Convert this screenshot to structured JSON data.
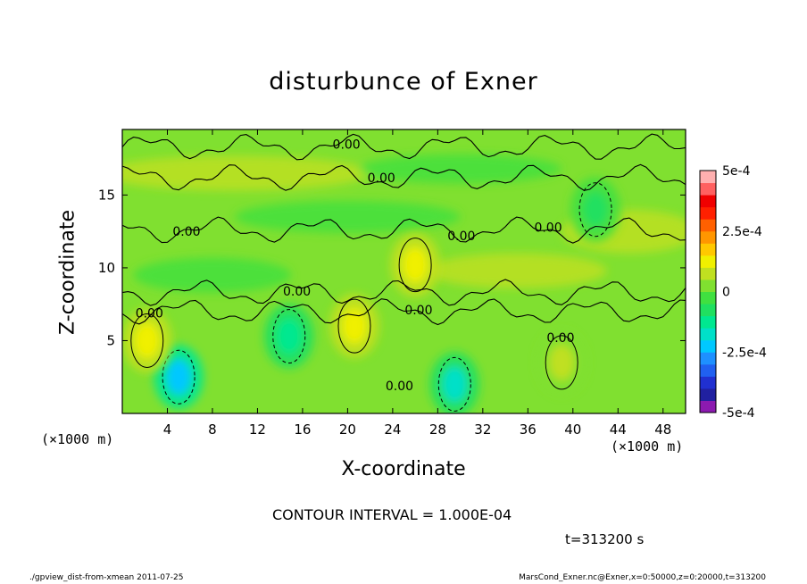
{
  "chart_data": {
    "type": "heatmap",
    "title": "disturbunce of Exner",
    "xlabel": "X-coordinate",
    "ylabel": "Z-coordinate",
    "x_unit": "(×1000 m)",
    "y_unit": "(×1000 m)",
    "xlim": [
      0,
      50
    ],
    "ylim": [
      0,
      19.5
    ],
    "x_ticks": [
      4,
      8,
      12,
      16,
      20,
      24,
      28,
      32,
      36,
      40,
      44,
      48
    ],
    "y_ticks": [
      5,
      10,
      15
    ],
    "colorbar": {
      "range": [
        -0.0005,
        0.0005
      ],
      "tick_labels": [
        "5e-4",
        "2.5e-4",
        "0",
        "-2.5e-4",
        "-5e-4"
      ],
      "tick_values": [
        0.0005,
        0.00025,
        0,
        -0.00025,
        -0.0005
      ],
      "colors": [
        "#8c1ab0",
        "#2020a0",
        "#2030d0",
        "#2060f0",
        "#1e90ff",
        "#00c8ff",
        "#00e0c8",
        "#00e890",
        "#20e060",
        "#40e040",
        "#80e030",
        "#c0e020",
        "#f0f000",
        "#ffc800",
        "#ff9600",
        "#ff6000",
        "#ff2000",
        "#f00000",
        "#ff6060",
        "#ffb0b0"
      ]
    },
    "contour_labels": [
      {
        "text": "0.00",
        "x": 19.9,
        "z": 18.5
      },
      {
        "text": "0.00",
        "x": 23.0,
        "z": 16.2
      },
      {
        "text": "0.00",
        "x": 5.7,
        "z": 12.5
      },
      {
        "text": "0.00",
        "x": 30.1,
        "z": 12.2
      },
      {
        "text": "0.00",
        "x": 37.8,
        "z": 12.8
      },
      {
        "text": "0.00",
        "x": 15.5,
        "z": 8.4
      },
      {
        "text": "0.00",
        "x": 2.4,
        "z": 6.9
      },
      {
        "text": "0.00",
        "x": 26.3,
        "z": 7.1
      },
      {
        "text": "0.00",
        "x": 38.9,
        "z": 5.2
      },
      {
        "text": "0.00",
        "x": 24.6,
        "z": 1.9
      }
    ],
    "anomalies": [
      {
        "sign": "negative",
        "x": 5.0,
        "z": 2.5,
        "level": -0.00022
      },
      {
        "sign": "negative",
        "x": 29.5,
        "z": 2.0,
        "level": -0.00018
      },
      {
        "sign": "negative",
        "x": 14.8,
        "z": 5.3,
        "level": -0.00012
      },
      {
        "sign": "negative",
        "x": 42.0,
        "z": 14.0,
        "level": -0.0001
      },
      {
        "sign": "positive",
        "x": 20.6,
        "z": 6.0,
        "level": 0.00012
      },
      {
        "sign": "positive",
        "x": 2.2,
        "z": 5.0,
        "level": 0.00012
      },
      {
        "sign": "positive",
        "x": 26.0,
        "z": 10.2,
        "level": 0.0001
      },
      {
        "sign": "positive",
        "x": 39.0,
        "z": 3.5,
        "level": 8e-05
      }
    ]
  },
  "contour_interval_text": "CONTOUR INTERVAL = 1.000E-04",
  "time_text": "t=313200 s",
  "footer_left": "./gpview_dist-from-xmean  2011-07-25",
  "footer_right": "MarsCond_Exner.nc@Exner,x=0:50000,z=0:20000,t=313200"
}
